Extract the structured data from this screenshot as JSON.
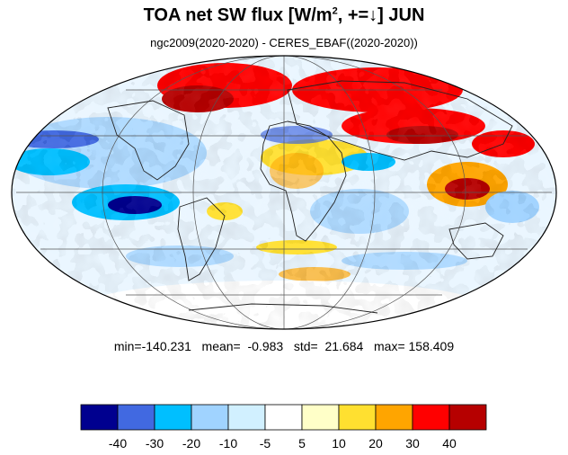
{
  "title": {
    "main": "TOA net SW flux [W/m",
    "sup": "2",
    "rest": ", +=↓]  JUN"
  },
  "subtitle": "ngc2009(2020-2020) - CERES_EBAF((2020-2020))",
  "stats": {
    "text": "min=-140.231   mean=  -0.983   std=  21.684   max= 158.409",
    "min": -140.231,
    "mean": -0.983,
    "std": 21.684,
    "max": 158.409
  },
  "colorbar": {
    "colors": [
      "#00008f",
      "#4169e1",
      "#00bfff",
      "#a0d3ff",
      "#d1f0ff",
      "#ffffff",
      "#ffffc8",
      "#ffe030",
      "#ffa500",
      "#ff0000",
      "#b60000"
    ],
    "labels": [
      "-40",
      "-30",
      "-20",
      "-10",
      "-5",
      "5",
      "10",
      "20",
      "30",
      "40"
    ]
  },
  "map": {
    "projection": "mollweide",
    "gridlines": true,
    "coastlines": true
  }
}
